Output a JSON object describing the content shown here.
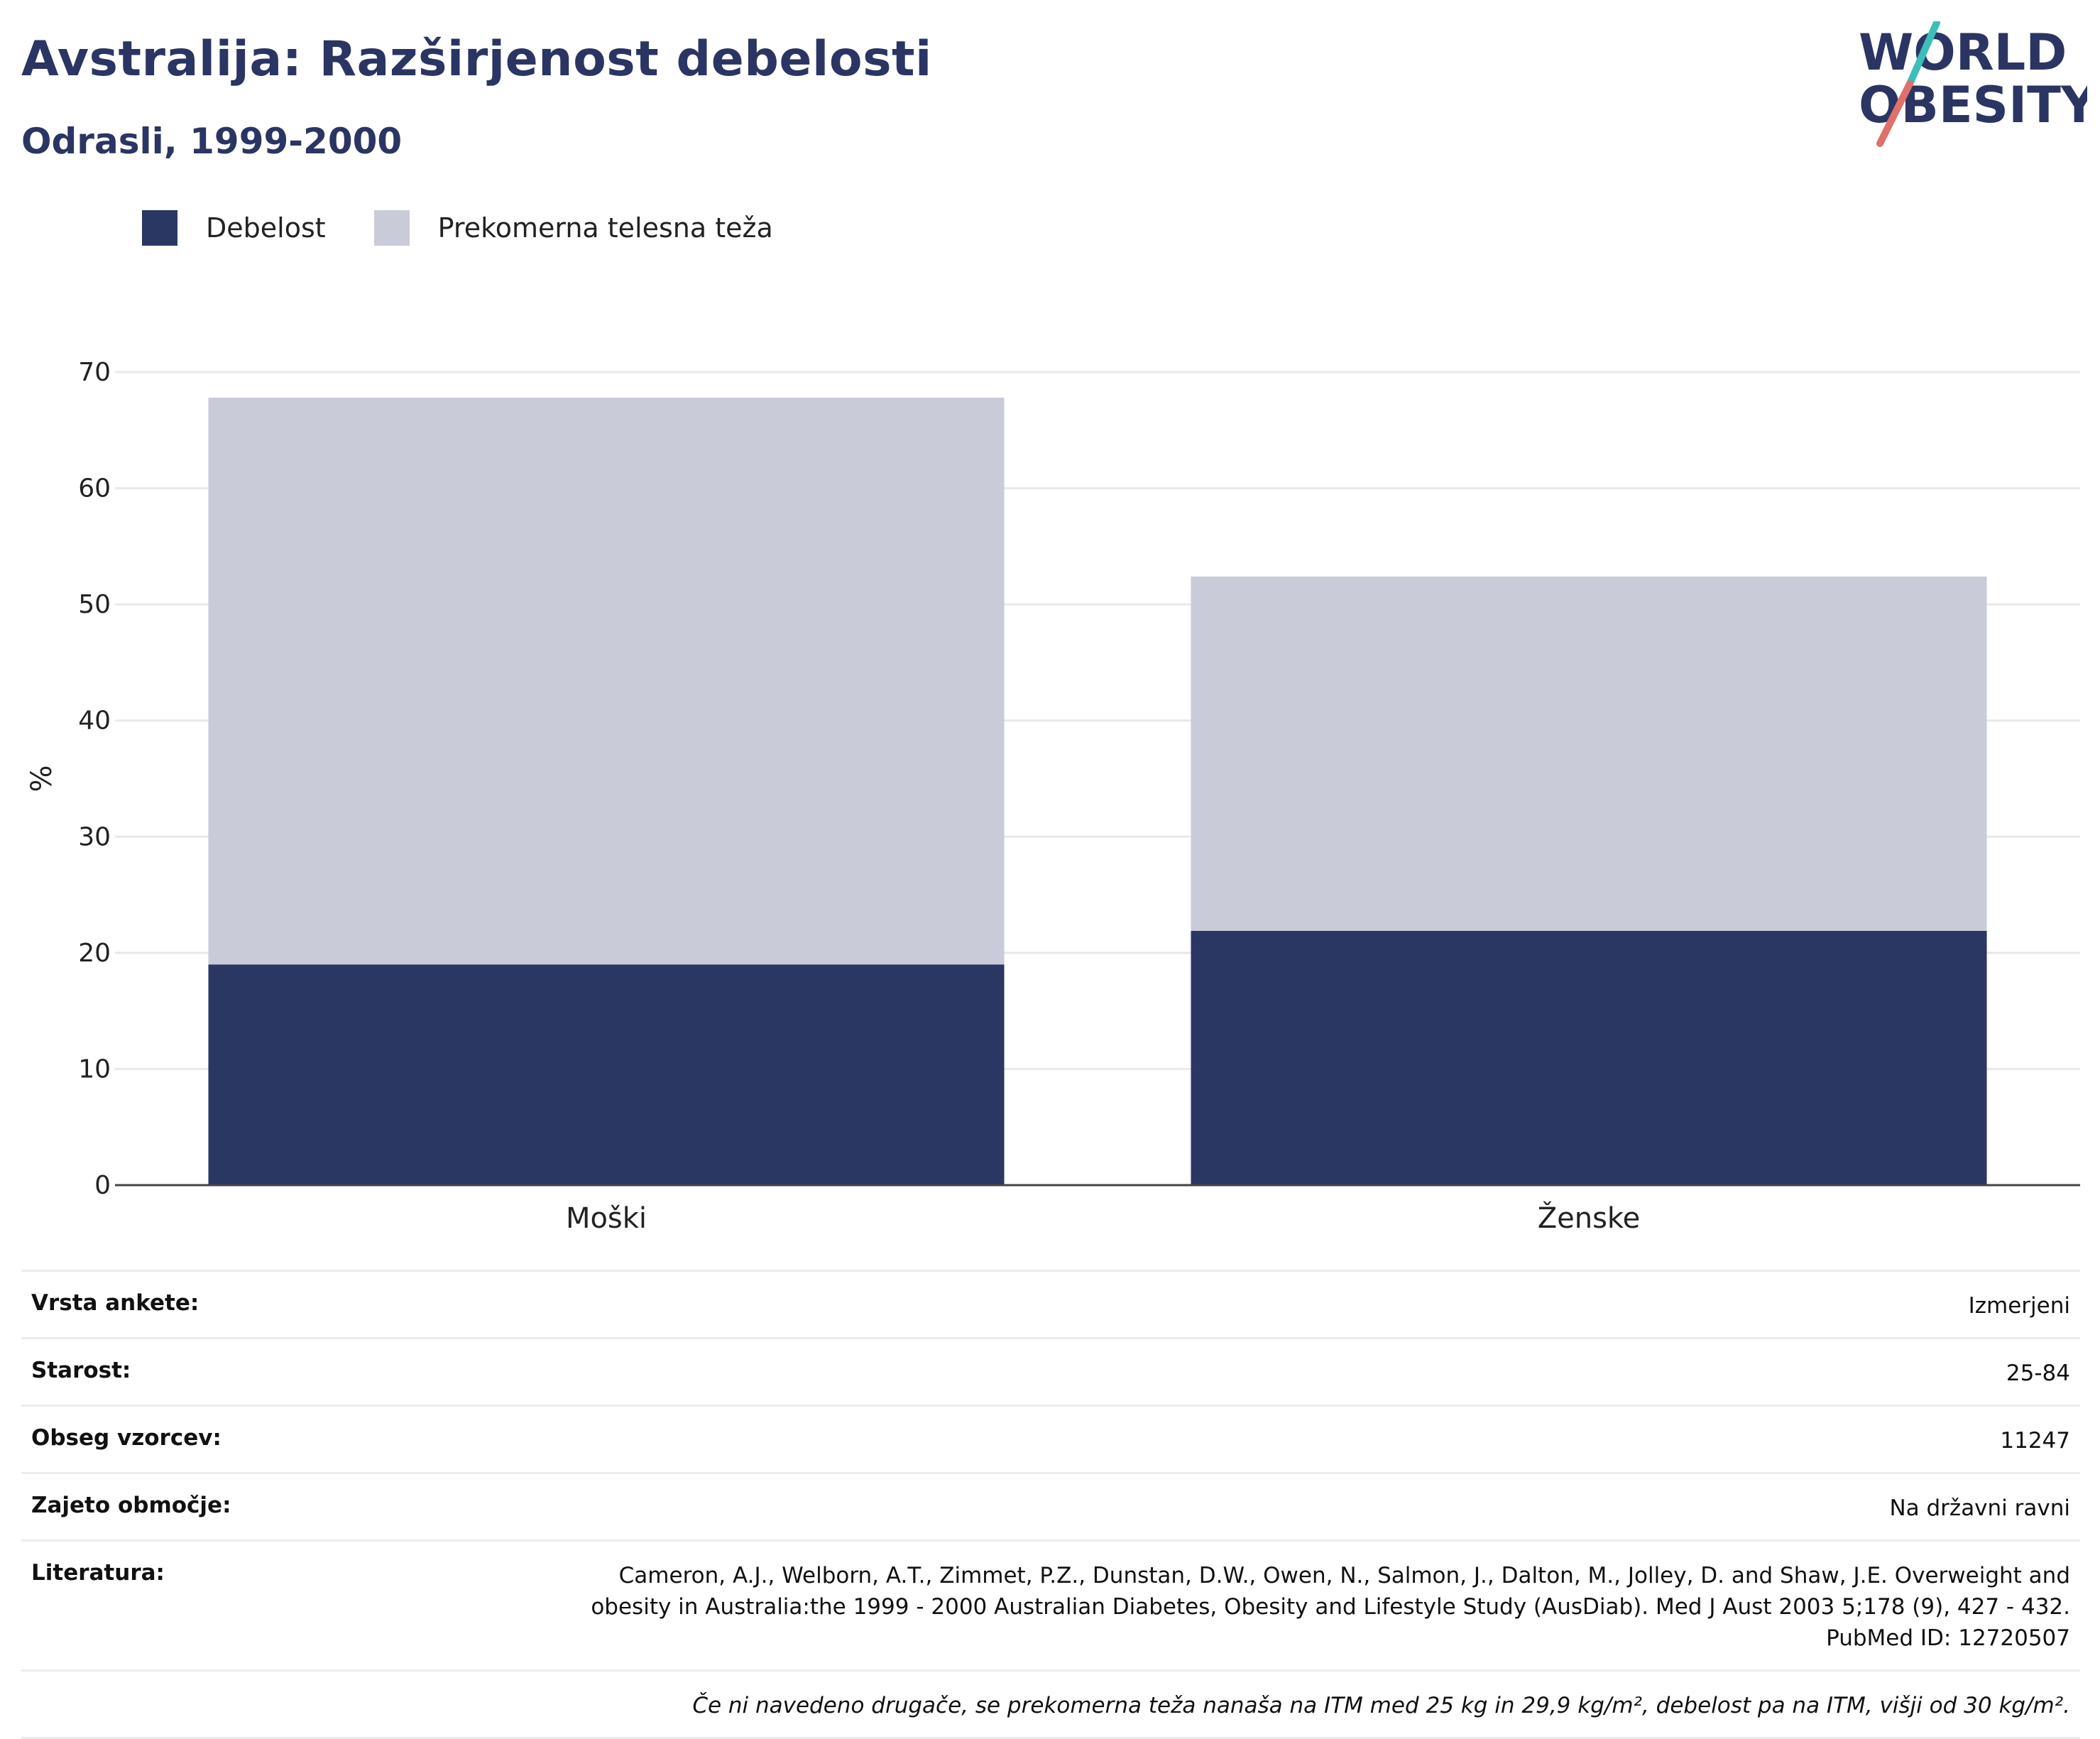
{
  "header": {
    "title": "Avstralija: Razširjenost debelosti",
    "subtitle": "Odrasli, 1999-2000"
  },
  "logo": {
    "line1": "WORLD",
    "line2": "OBESITY",
    "color_dark": "#2a3563",
    "color_teal": "#3bbfb8",
    "color_red": "#e0706a"
  },
  "legend": [
    {
      "label": "Debelost",
      "color": "#2a3763"
    },
    {
      "label": "Prekomerna telesna teža",
      "color": "#c9ccd8"
    }
  ],
  "chart_data": {
    "type": "bar",
    "stacked": true,
    "categories": [
      "Moški",
      "Ženske"
    ],
    "series": [
      {
        "name": "Debelost",
        "values": [
          19.0,
          21.9
        ],
        "color": "#2a3763"
      },
      {
        "name": "Prekomerna telesna teža",
        "values": [
          48.8,
          30.5
        ],
        "color": "#c9ccd8"
      }
    ],
    "ylabel": "%",
    "ylim": [
      0,
      70
    ],
    "yticks": [
      0,
      10,
      20,
      30,
      40,
      50,
      60,
      70
    ],
    "grid": true,
    "legend_position": "top-left"
  },
  "info": {
    "rows": [
      {
        "key": "Vrsta ankete:",
        "value": "Izmerjeni"
      },
      {
        "key": "Starost:",
        "value": "25-84"
      },
      {
        "key": "Obseg vzorcev:",
        "value": "11247"
      },
      {
        "key": "Zajeto območje:",
        "value": "Na državni ravni"
      },
      {
        "key": "Literatura:",
        "value_lines": [
          "Cameron, A.J., Welborn, A.T., Zimmet, P.Z., Dunstan, D.W., Owen, N., Salmon, J., Dalton, M., Jolley, D. and Shaw, J.E. Overweight and",
          "obesity in Australia:the 1999 - 2000 Australian Diabetes, Obesity and Lifestyle Study (AusDiab). Med J Aust 2003 5;178 (9), 427 - 432.",
          "PubMed ID: 12720507"
        ]
      }
    ],
    "note": "Če ni navedeno drugače, se prekomerna teža nanaša na ITM med 25 kg in 29,9 kg/m², debelost pa na ITM, višji od 30 kg/m²."
  }
}
